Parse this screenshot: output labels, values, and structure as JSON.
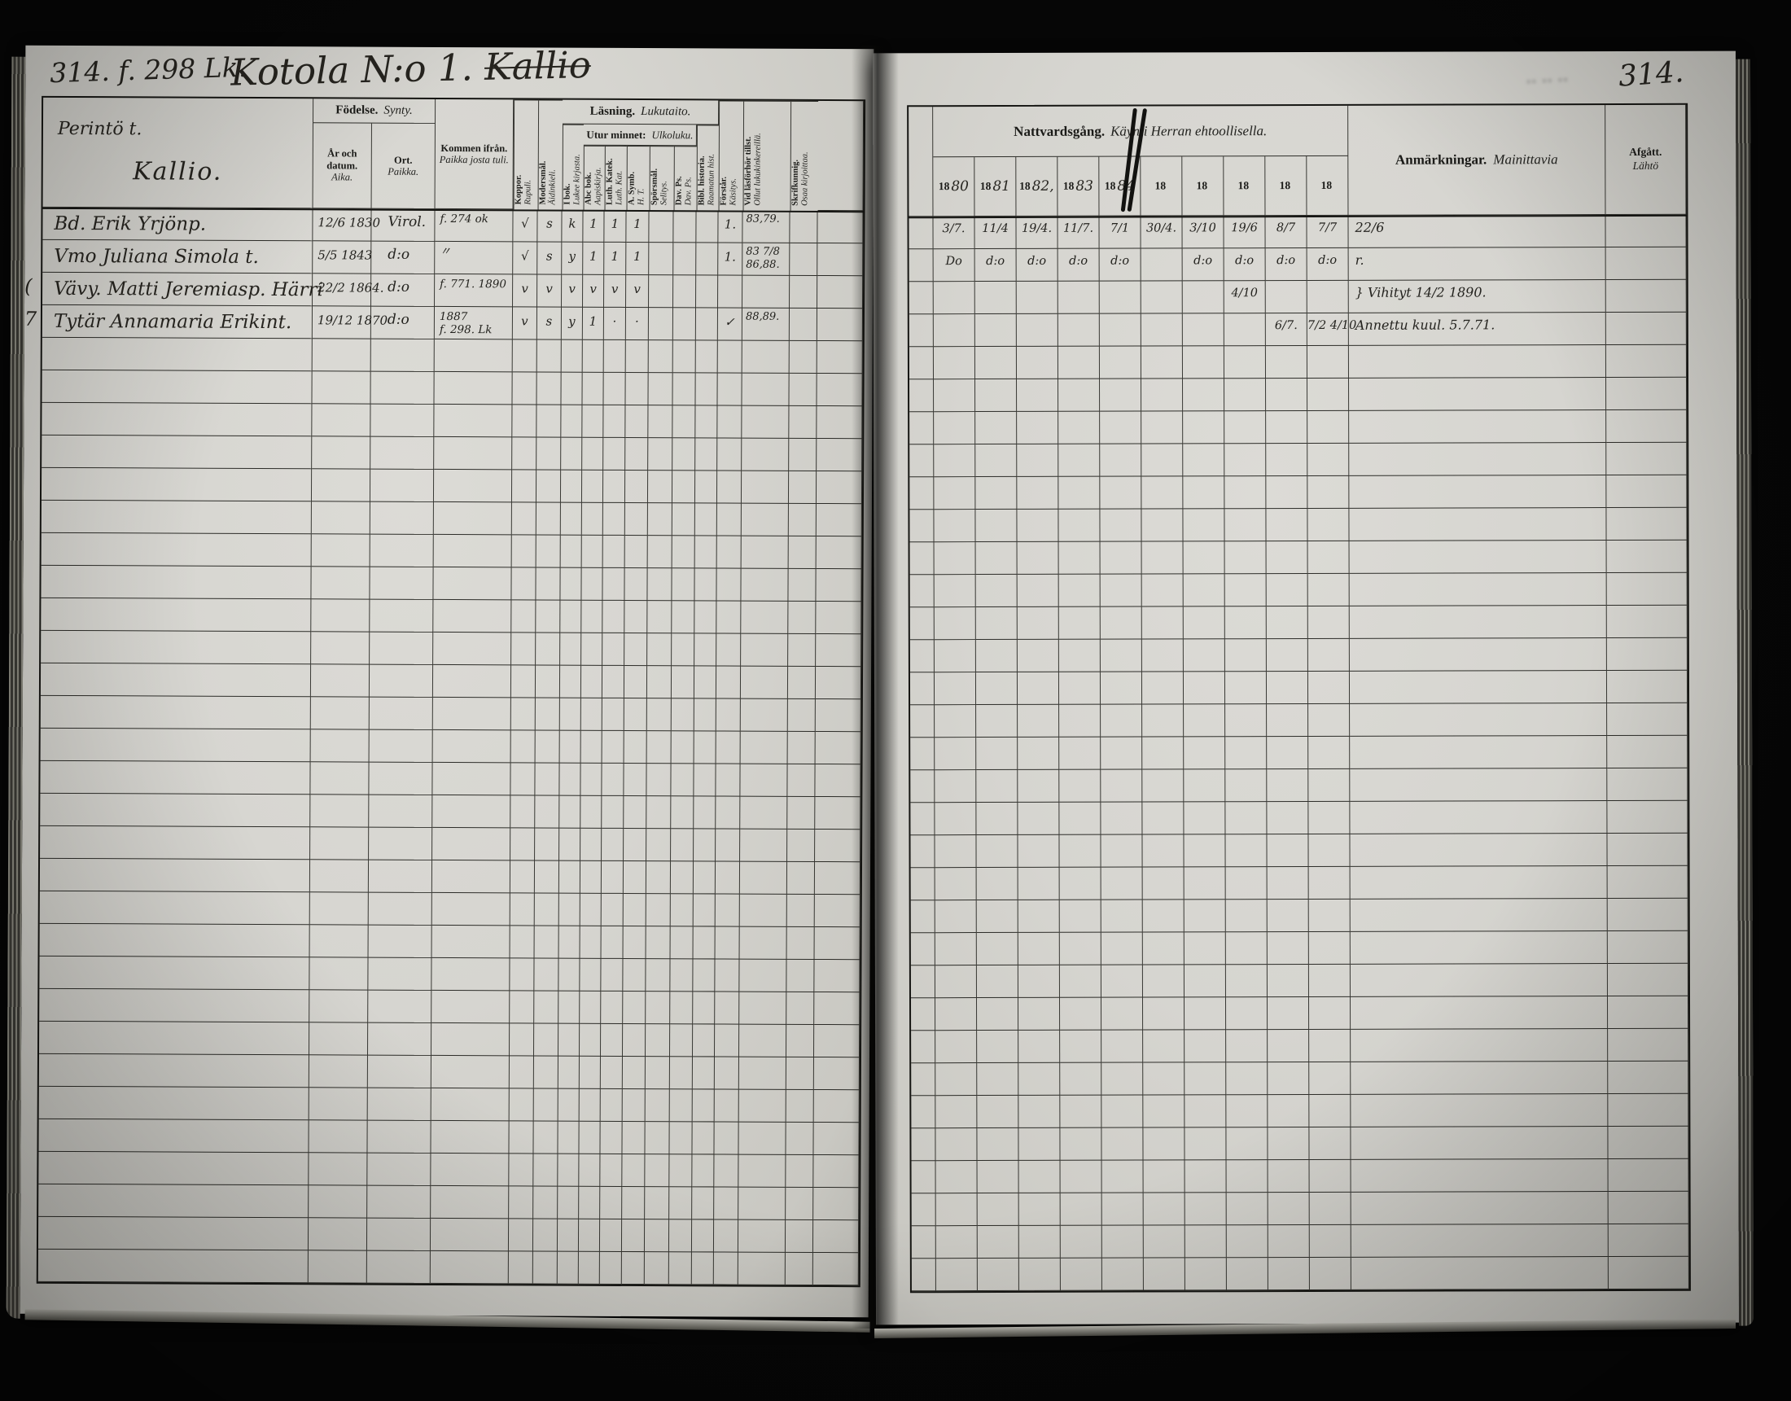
{
  "document": {
    "left_folio": "314. f. 298 Lk.",
    "title": "Kotola N:o 1.",
    "title_struck": "Kallio",
    "right_folio": "314."
  },
  "left_table": {
    "house": {
      "type_label": "Perintö t.",
      "name": "Kallio."
    },
    "headers": {
      "birth": {
        "sv": "Födelse.",
        "fi": "Synty."
      },
      "date": {
        "sv": "År och datum.",
        "fi": "Aika."
      },
      "place": {
        "sv": "Ort.",
        "fi": "Paikka."
      },
      "come_from": {
        "sv": "Kommen ifrån.",
        "fi": "Paikka josta tuli."
      },
      "smallpox": {
        "sv": "Koppor.",
        "fi": "Rupuli."
      },
      "mother_tongue": {
        "sv": "Modersmål.",
        "fi": "Äidinkieli."
      },
      "reading": {
        "sv": "Läsning.",
        "fi": "Lukutaito."
      },
      "from_memory": {
        "sv": "Utur minnet:",
        "fi": "Ulkoluku."
      },
      "in_book": {
        "sv": "I bok.",
        "fi": "Lukee kirjasta."
      },
      "abc_book": {
        "sv": "Abc bok.",
        "fi": "Aapiskirja."
      },
      "luth_catechism": {
        "sv": "Luth. Katek.",
        "fi": "Luth. Kat."
      },
      "apostolic_symbol": {
        "sv": "A. Symb.",
        "fi": "H. T."
      },
      "questions": {
        "sv": "Spörsmål.",
        "fi": "Selitys."
      },
      "davids_psalms": {
        "sv": "Dav. Ps.",
        "fi": "Dav. Ps."
      },
      "bible_history": {
        "sv": "Bibl. historia.",
        "fi": "Raamatun hist."
      },
      "comprehension": {
        "sv": "Förstår.",
        "fi": "Käsitys."
      },
      "reading_exam": {
        "sv": "Vid läsförhör tillst.",
        "fi": "Ollut lukukinkereillä."
      },
      "writing": {
        "sv": "Skrifkunnig.",
        "fi": "Osaa kirjoittaa."
      }
    },
    "rows": [
      {
        "margin": "",
        "name": "Bd. Erik Yrjönp.",
        "birth": "12/6 1830",
        "place": "Virol.",
        "come_from": "f. 274 ok",
        "marks": [
          "√",
          "s",
          "k",
          "1",
          "1",
          "1",
          "",
          "",
          ""
        ],
        "comprehension": "1.",
        "exam": "83,79.",
        "writing": ""
      },
      {
        "margin": "",
        "name": "Vmo Juliana Simola t.",
        "birth": "5/5 1843",
        "place": "d:o",
        "come_from": "〃",
        "marks": [
          "√",
          "s",
          "y",
          "1",
          "1",
          "1",
          "",
          "",
          ""
        ],
        "comprehension": "1.",
        "exam": "83 7/8\n86,88.",
        "writing": ""
      },
      {
        "margin": "(",
        "name": "Vävy. Matti Jeremiasp. Härri",
        "birth": "22/2 1864.",
        "place": "d:o",
        "come_from": "f. 771. 1890",
        "marks": [
          "v",
          "v",
          "v",
          "v",
          "v",
          "v",
          "",
          "",
          ""
        ],
        "comprehension": "",
        "exam": "",
        "writing": ""
      },
      {
        "margin": "7",
        "name": "Tytär Annamaria Erikint.",
        "birth": "19/12 1870",
        "place": "d:o",
        "come_from": "1887\nf. 298. Lk",
        "marks": [
          "v",
          "s",
          "y",
          "1",
          "·",
          "·",
          "",
          "",
          ""
        ],
        "comprehension": "✓",
        "exam": "88,89.",
        "writing": ""
      }
    ],
    "empty_row_count": 29
  },
  "right_table": {
    "headers": {
      "communion": {
        "sv": "Nattvardsgång.",
        "fi": "Käynti Herran ehtoollisella."
      },
      "year_prefix": "18",
      "year_suffixes": [
        "80",
        "81",
        "82,",
        "83",
        "84",
        "",
        "",
        "",
        "",
        ""
      ],
      "remarks": {
        "sv": "Anmärkningar.",
        "fi": "Mainittavia"
      },
      "departed": {
        "sv": "Afgått.",
        "fi": "Lähtö"
      }
    },
    "rows": [
      {
        "years": [
          "3/7.",
          "11/4",
          "19/4.",
          "11/7.",
          "7/1",
          "30/4.",
          "3/10",
          "19/6",
          "8/7",
          "7/7"
        ],
        "remarks": "22/6",
        "departed": ""
      },
      {
        "years": [
          "Do",
          "d:o",
          "d:o",
          "d:o",
          "d:o",
          "",
          "d:o",
          "d:o",
          "d:o",
          "d:o"
        ],
        "remarks": "r.",
        "departed": ""
      },
      {
        "years": [
          "",
          "",
          "",
          "",
          "",
          "",
          "",
          "4/10",
          "",
          ""
        ],
        "remarks": "} Vihityt 14/2 1890.",
        "departed": ""
      },
      {
        "years": [
          "",
          "",
          "",
          "",
          "",
          "",
          "",
          "",
          "6/7.",
          "7/2 4/10"
        ],
        "remarks": "Annettu kuul. 5.7.71.",
        "departed": ""
      }
    ],
    "empty_row_count": 29
  }
}
